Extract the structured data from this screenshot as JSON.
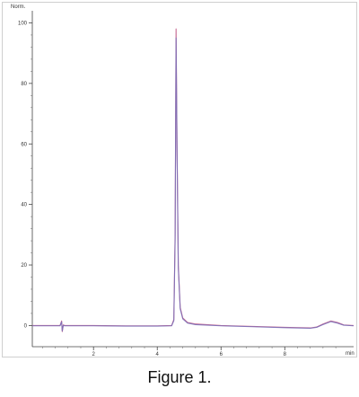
{
  "chart_data": {
    "type": "line",
    "ylabel": "Norm.",
    "xlabel": "min",
    "caption": "Figure 1.",
    "xlim": [
      0.08,
      10.16
    ],
    "ylim": [
      -7,
      104
    ],
    "grid": false,
    "x_ticks": [
      2,
      4,
      6,
      8
    ],
    "x_tick_labels": [
      "2",
      "4",
      "6",
      "8"
    ],
    "y_ticks": [
      0,
      20,
      40,
      60,
      80,
      100
    ],
    "y_tick_labels": [
      "0",
      "20",
      "40",
      "60",
      "80",
      "100"
    ],
    "series": [
      {
        "color": "#c05a86",
        "points": [
          [
            0.08,
            0.0
          ],
          [
            0.5,
            0.0
          ],
          [
            0.95,
            0.0
          ],
          [
            1.0,
            1.5
          ],
          [
            1.02,
            -2.0
          ],
          [
            1.05,
            0.2
          ],
          [
            1.1,
            0.0
          ],
          [
            2.0,
            0.0
          ],
          [
            3.0,
            -0.1
          ],
          [
            4.0,
            -0.1
          ],
          [
            4.45,
            0.0
          ],
          [
            4.52,
            2.0
          ],
          [
            4.56,
            30.0
          ],
          [
            4.59,
            98.0
          ],
          [
            4.62,
            60.0
          ],
          [
            4.66,
            20.0
          ],
          [
            4.72,
            6.0
          ],
          [
            4.8,
            2.5
          ],
          [
            4.95,
            1.0
          ],
          [
            5.2,
            0.5
          ],
          [
            6.0,
            0.0
          ],
          [
            7.0,
            -0.3
          ],
          [
            8.0,
            -0.6
          ],
          [
            8.8,
            -0.8
          ],
          [
            9.0,
            -0.5
          ],
          [
            9.2,
            0.5
          ],
          [
            9.45,
            1.5
          ],
          [
            9.65,
            1.0
          ],
          [
            9.85,
            0.2
          ],
          [
            10.16,
            0.0
          ]
        ]
      },
      {
        "color": "#7a6fb8",
        "points": [
          [
            0.08,
            -0.1
          ],
          [
            0.5,
            -0.1
          ],
          [
            0.95,
            -0.1
          ],
          [
            1.0,
            1.2
          ],
          [
            1.02,
            -1.8
          ],
          [
            1.05,
            0.0
          ],
          [
            1.1,
            -0.1
          ],
          [
            2.0,
            -0.1
          ],
          [
            3.0,
            -0.2
          ],
          [
            4.0,
            -0.2
          ],
          [
            4.45,
            -0.1
          ],
          [
            4.52,
            1.6
          ],
          [
            4.56,
            28.0
          ],
          [
            4.59,
            95.0
          ],
          [
            4.62,
            58.0
          ],
          [
            4.66,
            19.0
          ],
          [
            4.72,
            5.5
          ],
          [
            4.8,
            2.2
          ],
          [
            4.95,
            0.8
          ],
          [
            5.2,
            0.3
          ],
          [
            6.0,
            -0.1
          ],
          [
            7.0,
            -0.4
          ],
          [
            8.0,
            -0.7
          ],
          [
            8.8,
            -0.9
          ],
          [
            9.0,
            -0.6
          ],
          [
            9.2,
            0.3
          ],
          [
            9.45,
            1.3
          ],
          [
            9.65,
            0.8
          ],
          [
            9.85,
            0.1
          ],
          [
            10.16,
            -0.1
          ]
        ]
      }
    ]
  }
}
